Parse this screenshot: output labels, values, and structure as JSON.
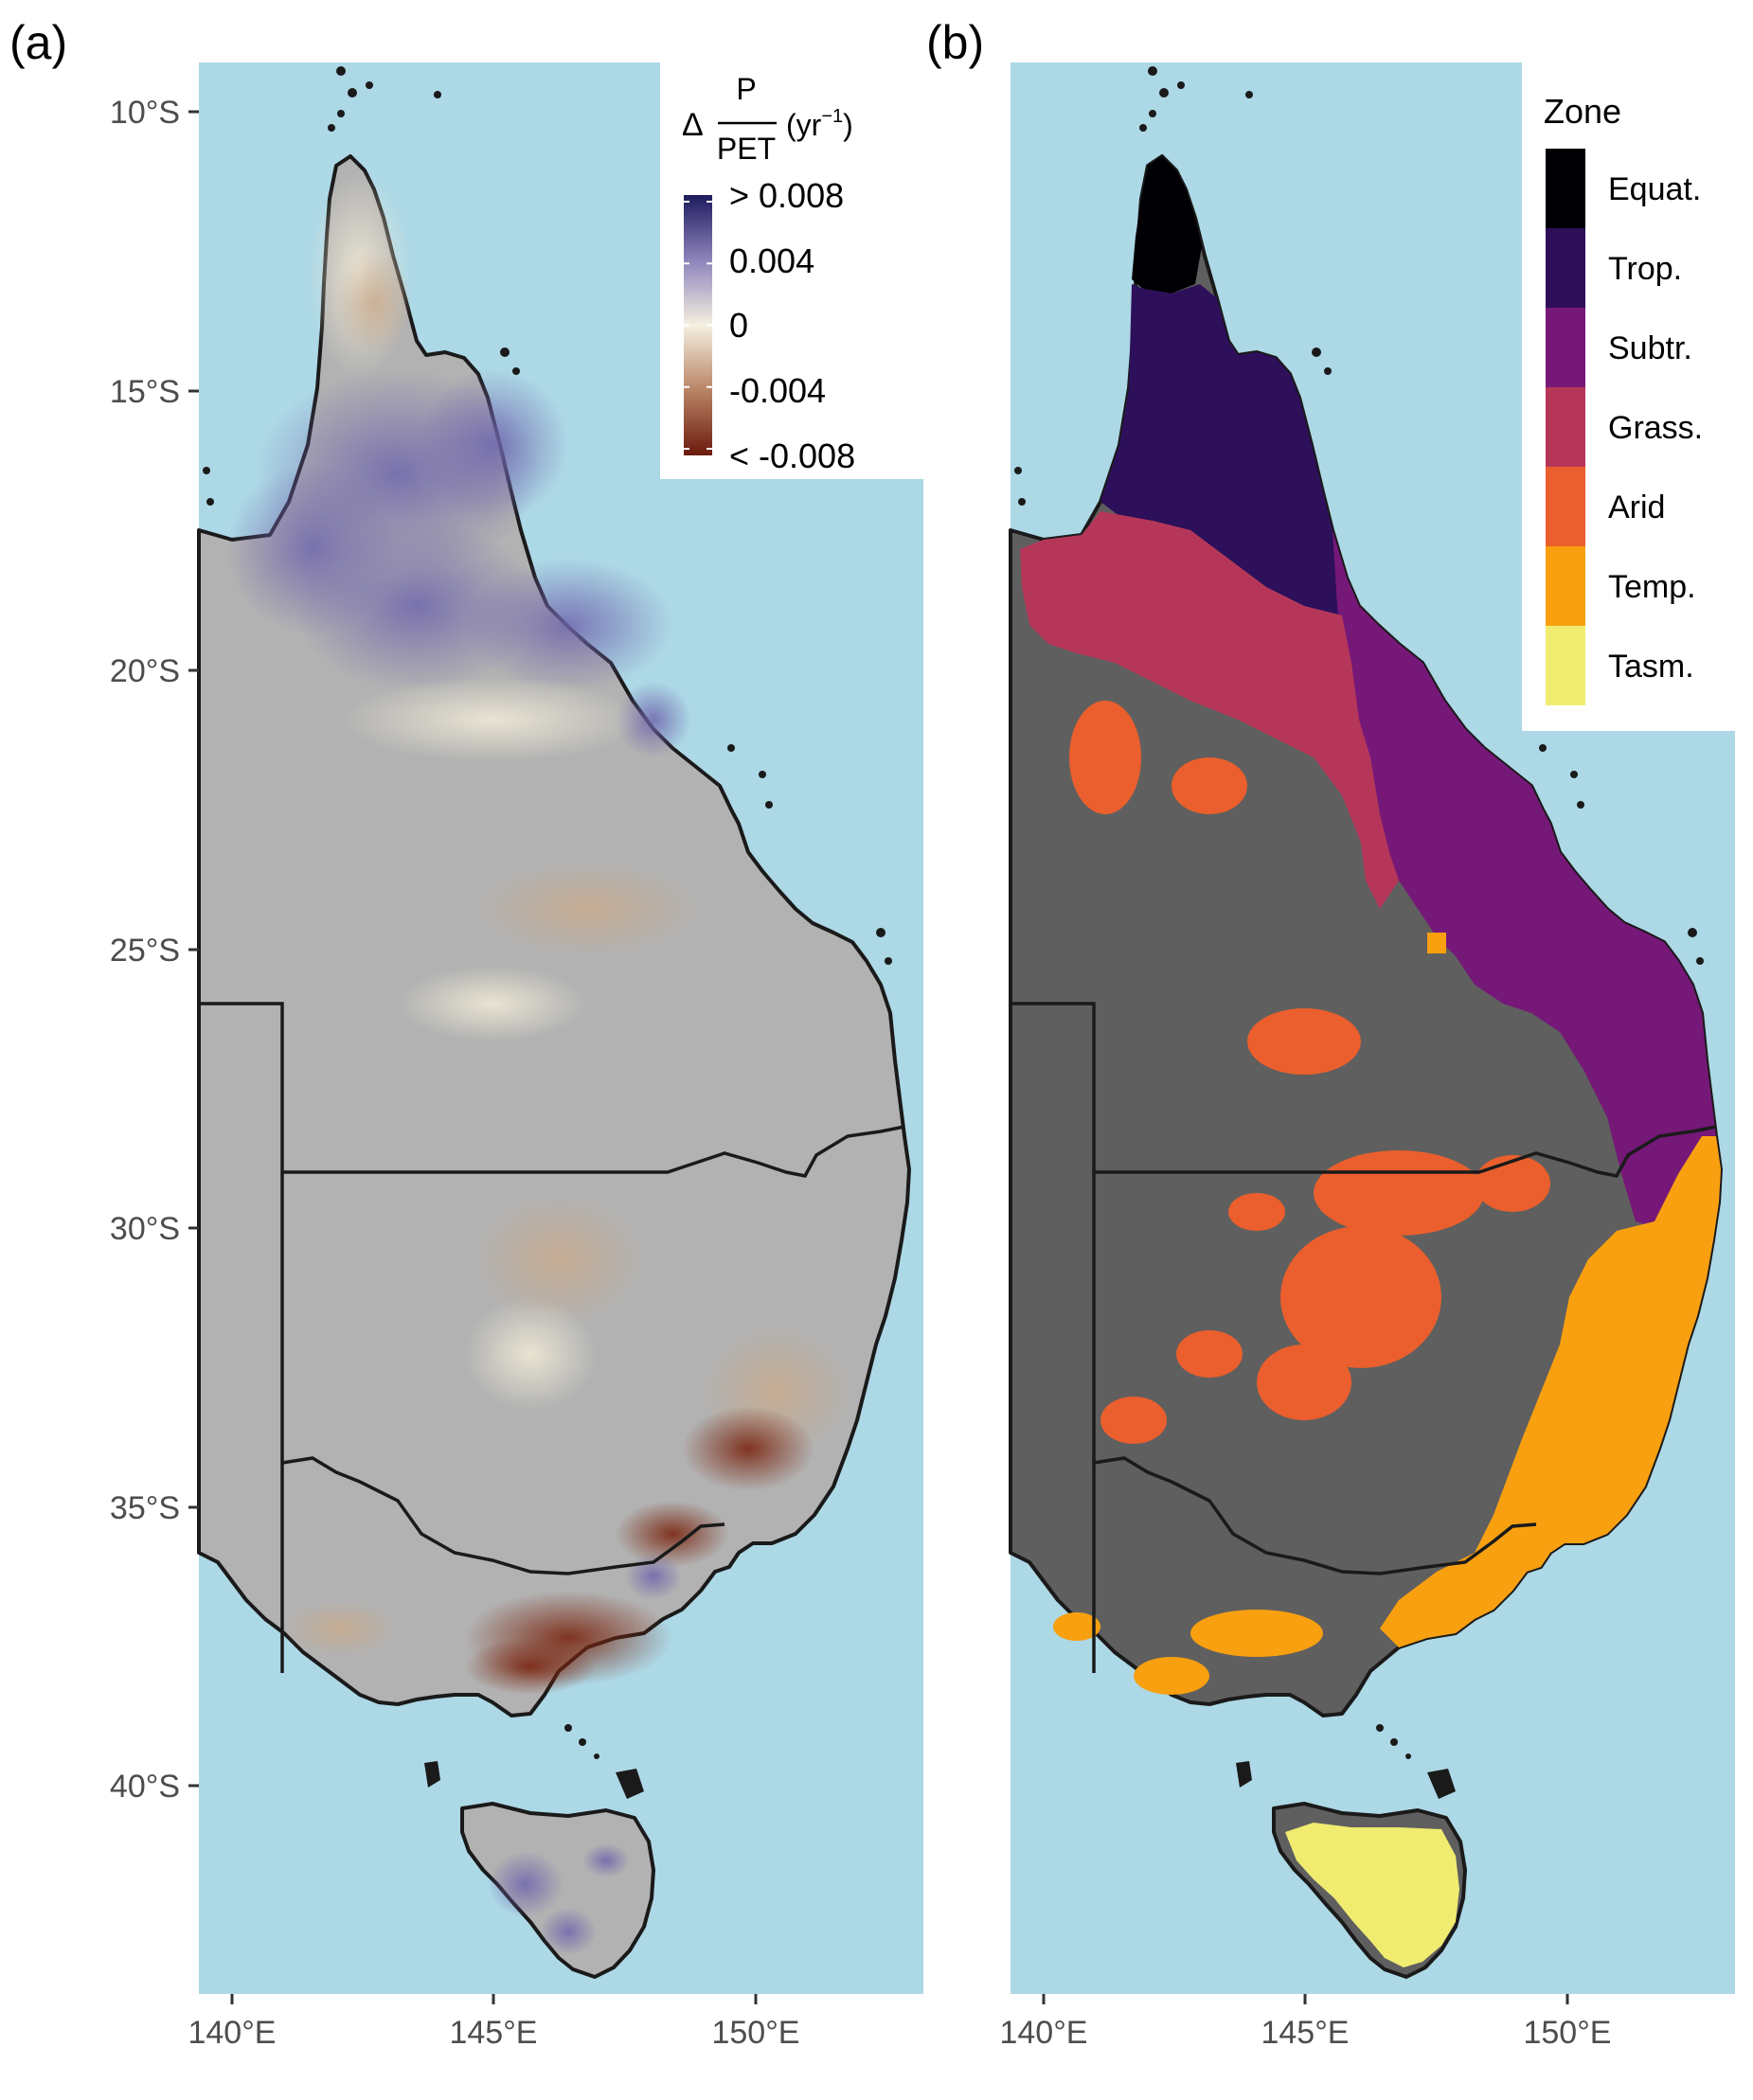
{
  "panels": {
    "a": {
      "tag": "(a)",
      "legend": {
        "delta": "Δ",
        "numerator": "P",
        "denominator": "PET",
        "unit_open": "(yr",
        "unit_exp": "−1",
        "unit_close": ")",
        "labels": [
          "> 0.008",
          "0.004",
          "0",
          "-0.004",
          "< -0.008"
        ],
        "colors": [
          "#1e1b5e",
          "#8e84bb",
          "#f4f0e1",
          "#b98466",
          "#6b1a0c"
        ]
      }
    },
    "b": {
      "tag": "(b)",
      "legend": {
        "title": "Zone",
        "items": [
          {
            "label": "Equat.",
            "color": "#000004"
          },
          {
            "label": "Trop.",
            "color": "#2d0f5a"
          },
          {
            "label": "Subtr.",
            "color": "#761878"
          },
          {
            "label": "Grass.",
            "color": "#b6365a"
          },
          {
            "label": "Arid",
            "color": "#ea5f2d"
          },
          {
            "label": "Temp.",
            "color": "#f8a010"
          },
          {
            "label": "Tasm.",
            "color": "#f0ec70"
          }
        ]
      }
    }
  },
  "axes": {
    "lat_labels": [
      "10°S",
      "15°S",
      "20°S",
      "25°S",
      "30°S",
      "35°S",
      "40°S"
    ],
    "lon_labels": [
      "140°E",
      "145°E",
      "150°E"
    ]
  },
  "colors": {
    "ocean": "#add8e6",
    "land_a": "#b2b2b2",
    "land_b": "#5f5f5f",
    "border": "#1a1a1a"
  }
}
